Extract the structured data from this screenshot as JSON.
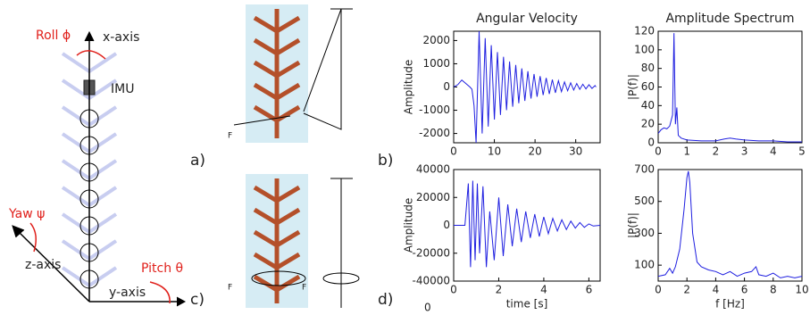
{
  "diagram": {
    "roll": "Roll ϕ",
    "x_axis": "x-axis",
    "imu": "IMU",
    "yaw": "Yaw ψ",
    "z_axis": "z-axis",
    "pitch": "Pitch θ",
    "y_axis": "y-axis",
    "panel_a": "a)",
    "panel_b": "b)",
    "panel_c": "c)",
    "panel_d": "d)",
    "force_1": "F",
    "force_2": "F",
    "force_3": "F",
    "stray": "0"
  },
  "chart_data": [
    {
      "type": "line",
      "title": "Angular Velocity",
      "y_label": "Amplitude",
      "color": "#1f1fe0",
      "x": [
        0,
        1,
        2,
        3,
        4,
        4.5,
        5,
        5.5,
        6.25,
        7,
        7.75,
        8.5,
        9.25,
        10,
        10.75,
        11.5,
        12.25,
        13,
        13.75,
        14.5,
        15.25,
        16,
        16.75,
        17.5,
        18.25,
        19,
        19.75,
        20.5,
        21.25,
        22,
        22.75,
        23.5,
        24.25,
        25,
        25.75,
        26.5,
        27.25,
        28,
        28.75,
        29.5,
        30.25,
        31,
        31.75,
        32.5,
        33.25,
        34,
        34.75,
        35
      ],
      "values": [
        0,
        100,
        300,
        150,
        0,
        -100,
        -800,
        -2400,
        2400,
        -2000,
        2100,
        -1700,
        1800,
        -1400,
        1500,
        -1200,
        1300,
        -1000,
        1100,
        -850,
        950,
        -700,
        800,
        -600,
        680,
        -500,
        560,
        -420,
        470,
        -350,
        390,
        -300,
        320,
        -250,
        270,
        -200,
        220,
        -160,
        180,
        -130,
        150,
        -100,
        120,
        -80,
        100,
        -60,
        60,
        0
      ],
      "xlim": [
        0,
        36
      ],
      "ylim": [
        -2400,
        2400
      ],
      "xticks": [
        0,
        10,
        20,
        30
      ],
      "yticks": [
        -2000,
        -1000,
        0,
        1000,
        2000
      ]
    },
    {
      "type": "line",
      "title": "Amplitude Spectrum",
      "y_label": "|P(f)|",
      "color": "#1f1fe0",
      "x": [
        0,
        0.1,
        0.2,
        0.3,
        0.4,
        0.5,
        0.55,
        0.6,
        0.65,
        0.7,
        0.8,
        1,
        1.5,
        2,
        2.3,
        2.5,
        2.7,
        3,
        3.5,
        4,
        4.5,
        5
      ],
      "values": [
        10,
        14,
        16,
        15,
        18,
        30,
        118,
        20,
        38,
        8,
        5,
        3,
        2,
        2,
        4,
        5,
        4,
        3,
        2,
        2,
        1,
        1
      ],
      "xlim": [
        0,
        5
      ],
      "ylim": [
        0,
        120
      ],
      "xticks": [
        0,
        1,
        2,
        3,
        4,
        5
      ],
      "yticks": [
        0,
        20,
        40,
        60,
        80,
        100,
        120
      ]
    },
    {
      "type": "line",
      "x_label": "time [s]",
      "y_label": "Amplitude",
      "color": "#1f1fe0",
      "x": [
        0,
        0.5,
        0.65,
        0.75,
        0.85,
        0.95,
        1.05,
        1.15,
        1.3,
        1.45,
        1.6,
        1.8,
        2,
        2.2,
        2.4,
        2.6,
        2.8,
        3,
        3.2,
        3.4,
        3.6,
        3.8,
        4,
        4.2,
        4.4,
        4.6,
        4.8,
        5,
        5.2,
        5.4,
        5.6,
        5.8,
        6,
        6.2,
        6.5
      ],
      "values": [
        0,
        0,
        30000,
        -30000,
        32000,
        -25000,
        30000,
        -20000,
        28000,
        -30000,
        10000,
        -25000,
        20000,
        -22000,
        15000,
        -15000,
        12000,
        -12000,
        10000,
        -9000,
        8000,
        -8000,
        6000,
        -6000,
        5000,
        -4000,
        4000,
        -3000,
        3000,
        -2000,
        2000,
        -1500,
        1000,
        -500,
        0
      ],
      "xlim": [
        0,
        6.5
      ],
      "ylim": [
        -40000,
        40000
      ],
      "xticks": [
        0,
        2,
        4,
        6
      ],
      "yticks": [
        -40000,
        -20000,
        0,
        20000,
        40000
      ]
    },
    {
      "type": "line",
      "x_label": "f [Hz]",
      "y_label": "|P(f)|",
      "color": "#1f1fe0",
      "x": [
        0,
        0.5,
        0.8,
        1,
        1.2,
        1.5,
        1.8,
        2,
        2.1,
        2.2,
        2.4,
        2.7,
        3,
        3.5,
        4,
        4.5,
        5,
        5.5,
        6,
        6.5,
        6.8,
        7,
        7.5,
        8,
        8.5,
        9,
        9.5,
        10
      ],
      "values": [
        30,
        40,
        80,
        50,
        90,
        200,
        450,
        650,
        690,
        620,
        300,
        120,
        90,
        70,
        60,
        40,
        60,
        30,
        50,
        60,
        90,
        40,
        30,
        50,
        20,
        30,
        20,
        30
      ],
      "xlim": [
        0,
        10
      ],
      "ylim": [
        0,
        700
      ],
      "xticks": [
        0,
        2,
        4,
        6,
        8,
        10
      ],
      "yticks": [
        100,
        300,
        500,
        700
      ]
    }
  ]
}
